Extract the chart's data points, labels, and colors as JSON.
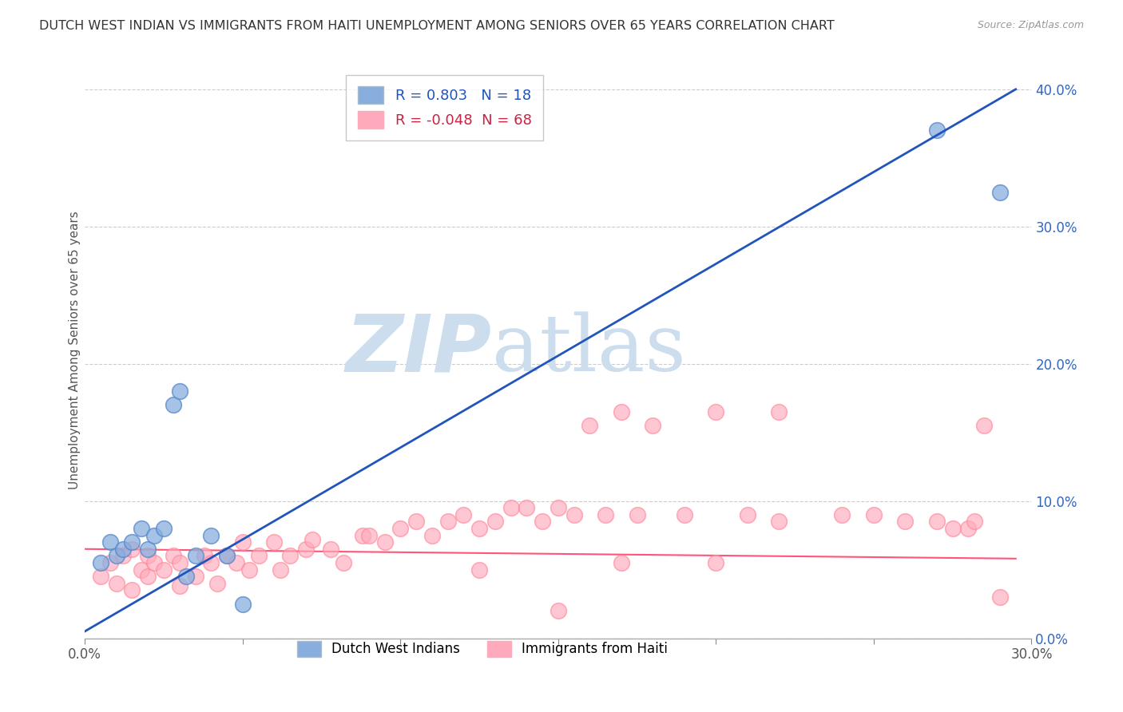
{
  "title": "DUTCH WEST INDIAN VS IMMIGRANTS FROM HAITI UNEMPLOYMENT AMONG SENIORS OVER 65 YEARS CORRELATION CHART",
  "source": "Source: ZipAtlas.com",
  "ylabel": "Unemployment Among Seniors over 65 years",
  "xlim": [
    0.0,
    0.3
  ],
  "ylim": [
    0.0,
    0.42
  ],
  "xticks": [
    0.0,
    0.05,
    0.1,
    0.15,
    0.2,
    0.25,
    0.3
  ],
  "yticks": [
    0.0,
    0.1,
    0.2,
    0.3,
    0.4
  ],
  "xtick_labels_show": [
    "0.0%",
    "",
    "",
    "",
    "",
    "",
    "30.0%"
  ],
  "ytick_labels": [
    "0.0%",
    "10.0%",
    "20.0%",
    "30.0%",
    "40.0%"
  ],
  "legend_labels": [
    "Dutch West Indians",
    "Immigrants from Haiti"
  ],
  "R_blue": 0.803,
  "N_blue": 18,
  "R_pink": -0.048,
  "N_pink": 68,
  "blue_color": "#88AEDD",
  "pink_color": "#FFAABC",
  "blue_edge_color": "#5588CC",
  "pink_edge_color": "#FF8899",
  "blue_line_color": "#2255BB",
  "pink_line_color": "#FF5577",
  "watermark_zip": "ZIP",
  "watermark_atlas": "atlas",
  "watermark_color": "#CCDDED",
  "background_color": "#FFFFFF",
  "blue_scatter_x": [
    0.005,
    0.008,
    0.01,
    0.012,
    0.015,
    0.018,
    0.02,
    0.022,
    0.025,
    0.028,
    0.03,
    0.032,
    0.035,
    0.04,
    0.045,
    0.05,
    0.27,
    0.29
  ],
  "blue_scatter_y": [
    0.055,
    0.07,
    0.06,
    0.065,
    0.07,
    0.08,
    0.065,
    0.075,
    0.08,
    0.17,
    0.18,
    0.045,
    0.06,
    0.075,
    0.06,
    0.025,
    0.37,
    0.325
  ],
  "pink_scatter_x": [
    0.005,
    0.008,
    0.01,
    0.012,
    0.015,
    0.015,
    0.018,
    0.02,
    0.02,
    0.022,
    0.025,
    0.028,
    0.03,
    0.03,
    0.035,
    0.038,
    0.04,
    0.042,
    0.045,
    0.048,
    0.05,
    0.052,
    0.055,
    0.06,
    0.062,
    0.065,
    0.07,
    0.072,
    0.078,
    0.082,
    0.088,
    0.09,
    0.095,
    0.1,
    0.105,
    0.11,
    0.115,
    0.12,
    0.125,
    0.13,
    0.135,
    0.14,
    0.145,
    0.15,
    0.155,
    0.16,
    0.165,
    0.17,
    0.175,
    0.18,
    0.19,
    0.2,
    0.21,
    0.22,
    0.24,
    0.25,
    0.26,
    0.27,
    0.275,
    0.28,
    0.282,
    0.285,
    0.29,
    0.125,
    0.15,
    0.17,
    0.2,
    0.22
  ],
  "pink_scatter_y": [
    0.045,
    0.055,
    0.04,
    0.06,
    0.035,
    0.065,
    0.05,
    0.045,
    0.06,
    0.055,
    0.05,
    0.06,
    0.038,
    0.055,
    0.045,
    0.06,
    0.055,
    0.04,
    0.06,
    0.055,
    0.07,
    0.05,
    0.06,
    0.07,
    0.05,
    0.06,
    0.065,
    0.072,
    0.065,
    0.055,
    0.075,
    0.075,
    0.07,
    0.08,
    0.085,
    0.075,
    0.085,
    0.09,
    0.08,
    0.085,
    0.095,
    0.095,
    0.085,
    0.095,
    0.09,
    0.155,
    0.09,
    0.165,
    0.09,
    0.155,
    0.09,
    0.165,
    0.09,
    0.165,
    0.09,
    0.09,
    0.085,
    0.085,
    0.08,
    0.08,
    0.085,
    0.155,
    0.03,
    0.05,
    0.02,
    0.055,
    0.055,
    0.085
  ],
  "blue_line_x0": 0.0,
  "blue_line_y0": 0.005,
  "blue_line_x1": 0.295,
  "blue_line_y1": 0.4,
  "pink_line_x0": 0.0,
  "pink_line_y0": 0.065,
  "pink_line_x1": 0.295,
  "pink_line_y1": 0.058
}
